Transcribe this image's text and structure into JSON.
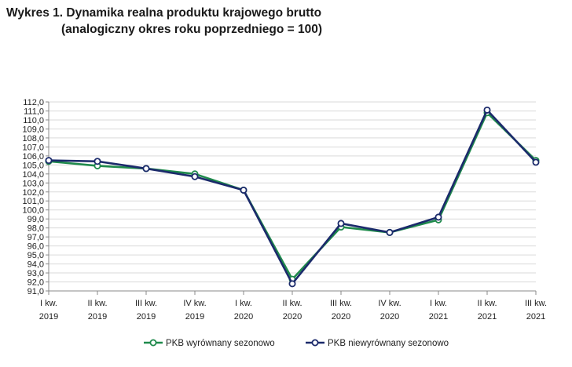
{
  "title": {
    "line1": "Wykres 1. Dynamika realna produktu krajowego brutto",
    "line2": "(analogiczny okres roku poprzedniego = 100)"
  },
  "chart_data": {
    "type": "line",
    "categories": [
      [
        "I kw.",
        "2019"
      ],
      [
        "II kw.",
        "2019"
      ],
      [
        "III kw.",
        "2019"
      ],
      [
        "IV kw.",
        "2019"
      ],
      [
        "I kw.",
        "2020"
      ],
      [
        "II kw.",
        "2020"
      ],
      [
        "III kw.",
        "2020"
      ],
      [
        "IV kw.",
        "2020"
      ],
      [
        "I kw.",
        "2021"
      ],
      [
        "II kw.",
        "2021"
      ],
      [
        "III kw.",
        "2021"
      ]
    ],
    "ylim": [
      91.0,
      112.0
    ],
    "ystep": 1.0,
    "y_tick_format": "comma_one_decimal",
    "grid": "horizontal",
    "legend_position": "bottom",
    "series": [
      {
        "name": "PKB wyrównany sezonowo",
        "color": "#1f8a4c",
        "values": [
          105.4,
          104.9,
          104.6,
          104.0,
          102.2,
          92.3,
          98.1,
          97.5,
          98.9,
          110.8,
          105.5
        ]
      },
      {
        "name": "PKB niewyrównany sezonowo",
        "color": "#1b2a6b",
        "values": [
          105.5,
          105.4,
          104.6,
          103.7,
          102.2,
          91.8,
          98.5,
          97.5,
          99.2,
          111.1,
          105.3
        ]
      }
    ]
  }
}
